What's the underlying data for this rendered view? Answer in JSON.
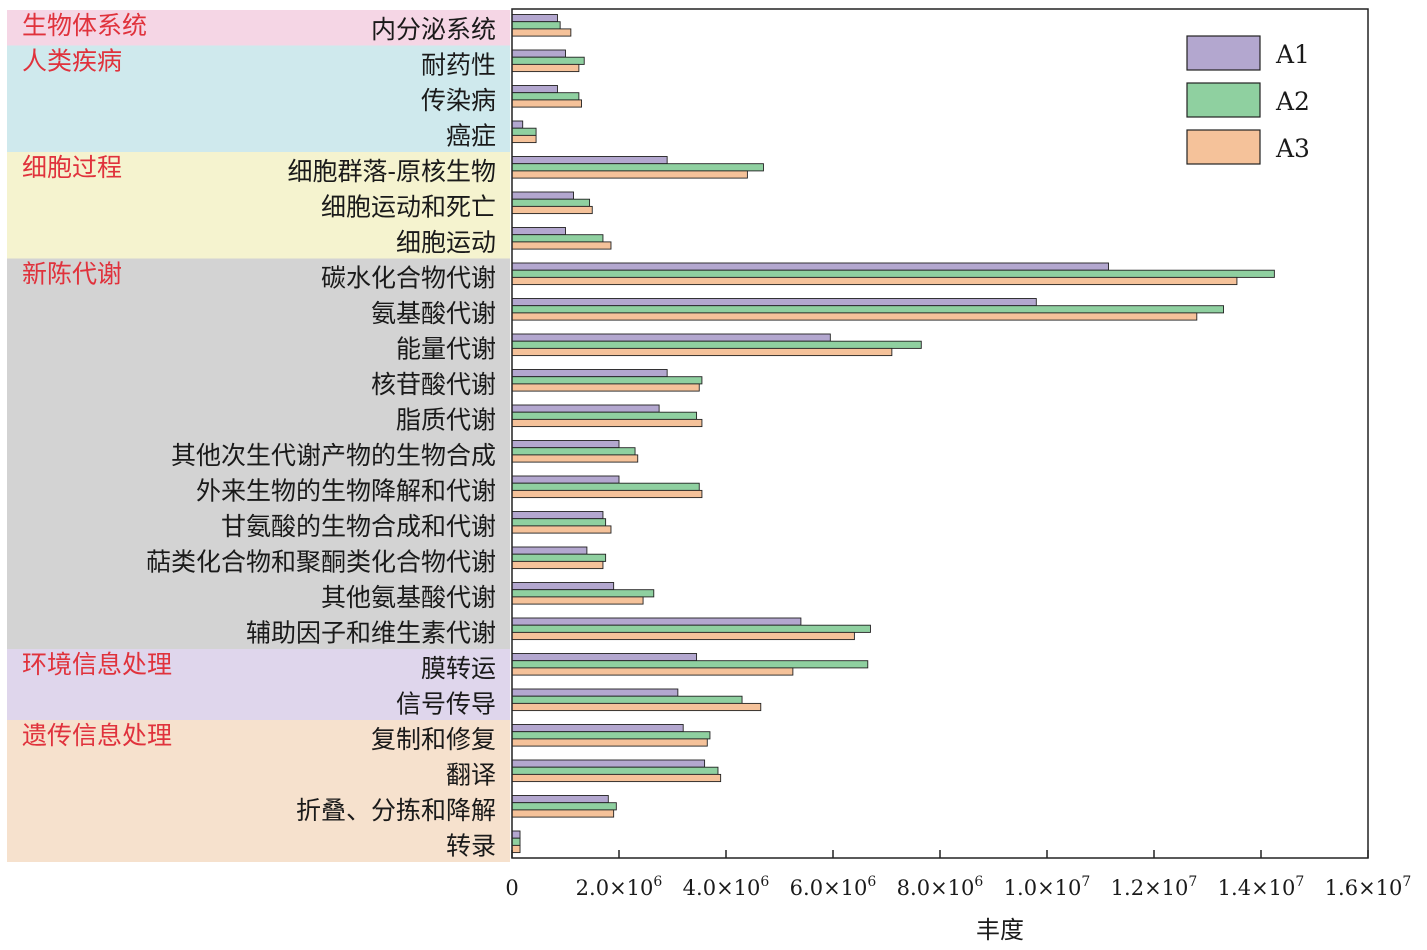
{
  "chart_data": {
    "type": "bar",
    "orientation": "horizontal",
    "xlabel": "丰度",
    "xlim": [
      0,
      16000000
    ],
    "x_ticks": [
      {
        "value": 0,
        "label": "0",
        "sup": ""
      },
      {
        "value": 2000000,
        "label": "2.0×10",
        "sup": "6"
      },
      {
        "value": 4000000,
        "label": "4.0×10",
        "sup": "6"
      },
      {
        "value": 6000000,
        "label": "6.0×10",
        "sup": "6"
      },
      {
        "value": 8000000,
        "label": "8.0×10",
        "sup": "6"
      },
      {
        "value": 10000000,
        "label": "1.0×10",
        "sup": "7"
      },
      {
        "value": 12000000,
        "label": "1.2×10",
        "sup": "7"
      },
      {
        "value": 14000000,
        "label": "1.4×10",
        "sup": "7"
      },
      {
        "value": 16000000,
        "label": "1.6×10",
        "sup": "7"
      }
    ],
    "grid": false,
    "legend_position": "top-right",
    "categories": [
      "内分泌系统",
      "耐药性",
      "传染病",
      "癌症",
      "细胞群落-原核生物",
      "细胞运动和死亡",
      "细胞运动",
      "碳水化合物代谢",
      "氨基酸代谢",
      "能量代谢",
      "核苷酸代谢",
      "脂质代谢",
      "其他次生代谢产物的生物合成",
      "外来生物的生物降解和代谢",
      "甘氨酸的生物合成和代谢",
      "萜类化合物和聚酮类化合物代谢",
      "其他氨基酸代谢",
      "辅助因子和维生素代谢",
      "膜转运",
      "信号传导",
      "复制和修复",
      "翻译",
      "折叠、分拣和降解",
      "转录"
    ],
    "series": [
      {
        "name": "A1",
        "color": "#b3a7cf",
        "values": [
          850000,
          1000000,
          850000,
          200000,
          2900000,
          1150000,
          1000000,
          11150000,
          9800000,
          5950000,
          2900000,
          2750000,
          2000000,
          2000000,
          1700000,
          1400000,
          1900000,
          5400000,
          3450000,
          3100000,
          3200000,
          3600000,
          1800000,
          150000
        ]
      },
      {
        "name": "A2",
        "color": "#8fd0a0",
        "values": [
          900000,
          1350000,
          1250000,
          450000,
          4700000,
          1450000,
          1700000,
          14250000,
          13300000,
          7650000,
          3550000,
          3450000,
          2300000,
          3500000,
          1750000,
          1750000,
          2650000,
          6700000,
          6650000,
          4300000,
          3700000,
          3850000,
          1950000,
          150000
        ]
      },
      {
        "name": "A3",
        "color": "#f5c29a",
        "values": [
          1100000,
          1250000,
          1300000,
          450000,
          4400000,
          1500000,
          1850000,
          13550000,
          12800000,
          7100000,
          3500000,
          3550000,
          2350000,
          3550000,
          1850000,
          1700000,
          2450000,
          6400000,
          5250000,
          4650000,
          3650000,
          3900000,
          1900000,
          150000
        ]
      }
    ],
    "groups": [
      {
        "label": "生物体系统",
        "color": "#f5d6e5",
        "start": 0,
        "end": 0
      },
      {
        "label": "人类疾病",
        "color": "#cfe9ed",
        "start": 1,
        "end": 3
      },
      {
        "label": "细胞过程",
        "color": "#f5f3cf",
        "start": 4,
        "end": 6
      },
      {
        "label": "新陈代谢",
        "color": "#d3d3d3",
        "start": 7,
        "end": 17
      },
      {
        "label": "环境信息处理",
        "color": "#dfd6ec",
        "start": 18,
        "end": 19
      },
      {
        "label": "遗传信息处理",
        "color": "#f6e1cd",
        "start": 20,
        "end": 23
      }
    ]
  }
}
